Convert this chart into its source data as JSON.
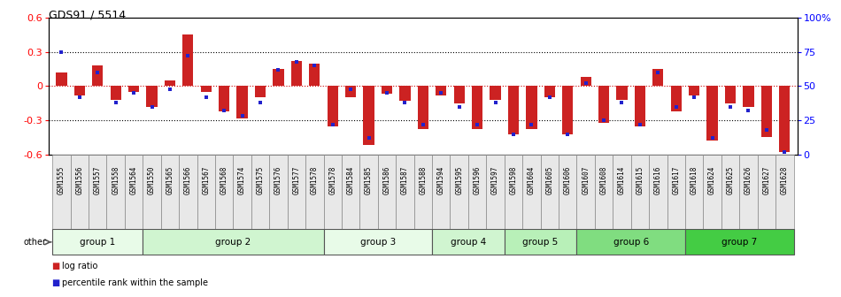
{
  "title": "GDS91 / 5514",
  "samples": [
    "GSM1555",
    "GSM1556",
    "GSM1557",
    "GSM1558",
    "GSM1564",
    "GSM1550",
    "GSM1565",
    "GSM1566",
    "GSM1567",
    "GSM1568",
    "GSM1574",
    "GSM1575",
    "GSM1576",
    "GSM1577",
    "GSM1578",
    "GSM1578",
    "GSM1584",
    "GSM1585",
    "GSM1586",
    "GSM1587",
    "GSM1588",
    "GSM1594",
    "GSM1595",
    "GSM1596",
    "GSM1597",
    "GSM1598",
    "GSM1604",
    "GSM1605",
    "GSM1606",
    "GSM1607",
    "GSM1608",
    "GSM1614",
    "GSM1615",
    "GSM1616",
    "GSM1617",
    "GSM1618",
    "GSM1624",
    "GSM1625",
    "GSM1626",
    "GSM1627",
    "GSM1628"
  ],
  "log_ratio": [
    0.12,
    -0.08,
    0.18,
    -0.12,
    -0.05,
    -0.18,
    0.05,
    0.45,
    -0.05,
    -0.22,
    -0.28,
    -0.1,
    0.15,
    0.22,
    0.2,
    -0.35,
    -0.1,
    -0.52,
    -0.07,
    -0.13,
    -0.38,
    -0.08,
    -0.15,
    -0.38,
    -0.12,
    -0.42,
    -0.38,
    -0.1,
    -0.42,
    0.08,
    -0.32,
    -0.12,
    -0.35,
    0.15,
    -0.22,
    -0.08,
    -0.48,
    -0.15,
    -0.18,
    -0.45,
    -0.58
  ],
  "percentile": [
    75,
    42,
    60,
    38,
    45,
    35,
    48,
    72,
    42,
    32,
    28,
    38,
    62,
    68,
    65,
    22,
    48,
    12,
    45,
    38,
    22,
    45,
    35,
    22,
    38,
    15,
    22,
    42,
    15,
    52,
    25,
    38,
    22,
    60,
    35,
    42,
    12,
    35,
    32,
    18,
    2
  ],
  "groups": [
    {
      "name": "group 1",
      "start": 0,
      "end": 5,
      "color": "#e8fbe8"
    },
    {
      "name": "group 2",
      "start": 5,
      "end": 15,
      "color": "#d0f5d0"
    },
    {
      "name": "group 3",
      "start": 15,
      "end": 21,
      "color": "#e8fbe8"
    },
    {
      "name": "group 4",
      "start": 21,
      "end": 25,
      "color": "#d0f5d0"
    },
    {
      "name": "group 5",
      "start": 25,
      "end": 29,
      "color": "#b8f0b8"
    },
    {
      "name": "group 6",
      "start": 29,
      "end": 35,
      "color": "#80dd80"
    },
    {
      "name": "group 7",
      "start": 35,
      "end": 41,
      "color": "#44cc44"
    }
  ],
  "bar_color": "#cc2222",
  "dot_color": "#2222cc",
  "ylim": [
    -0.6,
    0.6
  ],
  "y2lim": [
    0,
    100
  ],
  "yticks_left": [
    -0.6,
    -0.3,
    0.0,
    0.3,
    0.6
  ],
  "ytick_labels_left": [
    "-0.6",
    "-0.3",
    "0",
    "0.3",
    "0.6"
  ],
  "yticks_right": [
    0,
    25,
    50,
    75,
    100
  ],
  "ytick_labels_right": [
    "0",
    "25",
    "50",
    "75",
    "100%"
  ],
  "dotted_lines": [
    -0.3,
    0.3
  ],
  "zero_line": 0.0,
  "legend_log": "log ratio",
  "legend_pct": "percentile rank within the sample"
}
